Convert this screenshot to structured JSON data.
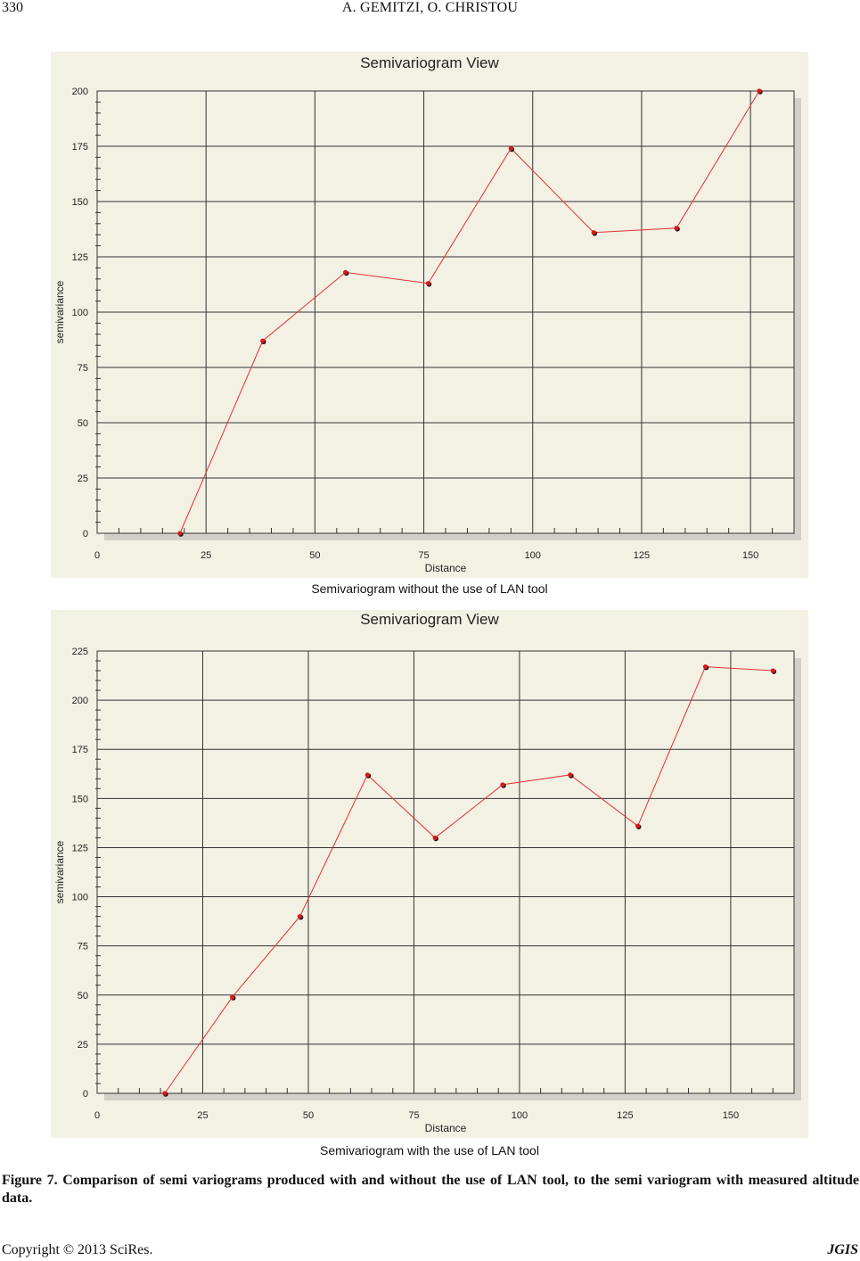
{
  "header": {
    "page_number": "330",
    "authors": "A. GEMITZI, O. CHRISTOU"
  },
  "figure_caption": "Figure 7. Comparison of semi variograms produced with and without the use of LAN tool, to the semi variogram with measured altitude data.",
  "footer": {
    "copyright": "Copyright © 2013 SciRes.",
    "journal": "JGIS"
  },
  "colors": {
    "panel_bg": "#f3f0e4",
    "plot_bg": "#f3f0e4",
    "line": "#e2322f",
    "marker": "#d7191c",
    "grid": "#333333"
  },
  "chart_data": [
    {
      "type": "line",
      "title": "Semivariogram View",
      "caption": "Semivariogram without the use of LAN tool",
      "xlabel": "Distance",
      "ylabel": "semivariance",
      "xlim": [
        0,
        160
      ],
      "ylim": [
        0,
        200
      ],
      "xticks": [
        "0",
        "25",
        "50",
        "75",
        "100",
        "125",
        "150"
      ],
      "yticks": [
        "0",
        "25",
        "50",
        "75",
        "100",
        "125",
        "150",
        "175",
        "200"
      ],
      "grid": true,
      "series": [
        {
          "x": [
            19,
            38,
            57,
            76,
            95,
            114,
            133,
            152
          ],
          "y": [
            0,
            87,
            118,
            113,
            174,
            136,
            138,
            200
          ]
        }
      ]
    },
    {
      "type": "line",
      "title": "Semivariogram View",
      "caption": "Semivariogram with the use of LAN tool",
      "xlabel": "Distance",
      "ylabel": "semivariance",
      "xlim": [
        0,
        165
      ],
      "ylim": [
        0,
        225
      ],
      "xticks": [
        "0",
        "25",
        "50",
        "75",
        "100",
        "125",
        "150"
      ],
      "yticks": [
        "0",
        "25",
        "50",
        "75",
        "100",
        "125",
        "150",
        "175",
        "200",
        "225"
      ],
      "grid": true,
      "series": [
        {
          "x": [
            16,
            32,
            48,
            64,
            80,
            96,
            112,
            128,
            144,
            160
          ],
          "y": [
            0,
            49,
            90,
            162,
            130,
            157,
            162,
            136,
            217,
            215
          ]
        }
      ]
    }
  ]
}
